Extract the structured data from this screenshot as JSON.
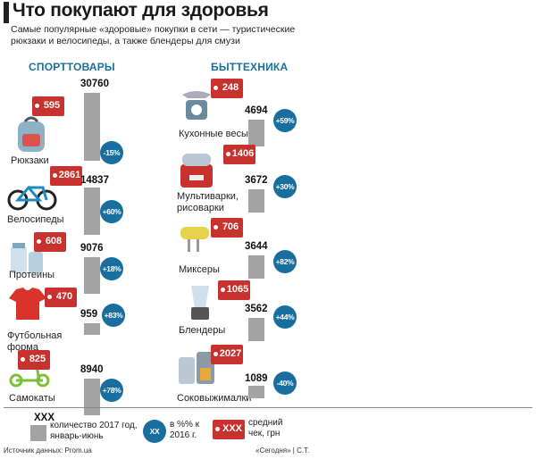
{
  "title": "Что покупают для здоровья",
  "subtitle": "Самые популярные «здоровые» покупки в сети — туристические рюкзаки и велосипеды, а также блендеры для смузи",
  "chart_data": {
    "type": "bar",
    "groups": [
      {
        "name": "СПОРТТОВАРЫ",
        "items": [
          {
            "label": "Рюкзаки",
            "quantity": 30760,
            "change": "-15%",
            "avg_check": 595,
            "icon": "backpack-icon"
          },
          {
            "label": "Велосипеды",
            "quantity": 14837,
            "change": "+60%",
            "avg_check": 2861,
            "icon": "bicycle-icon"
          },
          {
            "label": "Протеины",
            "quantity": 9076,
            "change": "+18%",
            "avg_check": 608,
            "icon": "protein-jar-icon"
          },
          {
            "label": "Футбольная форма",
            "quantity": 959,
            "change": "+83%",
            "avg_check": 470,
            "icon": "football-shirt-icon"
          },
          {
            "label": "Самокаты",
            "quantity": 8940,
            "change": "+78%",
            "avg_check": 825,
            "icon": "scooter-icon"
          }
        ]
      },
      {
        "name": "БЫТТЕХНИКА",
        "items": [
          {
            "label": "Кухонные весы",
            "quantity": 4694,
            "change": "+59%",
            "avg_check": 248,
            "icon": "kitchen-scale-icon"
          },
          {
            "label": "Мультиварки, рисоварки",
            "quantity": 3672,
            "change": "+30%",
            "avg_check": 1406,
            "icon": "multicooker-icon"
          },
          {
            "label": "Миксеры",
            "quantity": 3644,
            "change": "+82%",
            "avg_check": 706,
            "icon": "mixer-icon"
          },
          {
            "label": "Блендеры",
            "quantity": 3562,
            "change": "+44%",
            "avg_check": 1065,
            "icon": "blender-icon"
          },
          {
            "label": "Соковыжималки",
            "quantity": 1089,
            "change": "-40%",
            "avg_check": 2027,
            "icon": "juicer-icon"
          }
        ]
      }
    ]
  },
  "legend": {
    "qty_symbol": "XXX",
    "qty_text": "количество 2017 год, январь-июнь",
    "pct_symbol": "XX",
    "pct_text": "в %% к 2016 г.",
    "check_symbol": "XXX",
    "check_text": "средний чек, грн"
  },
  "footer": {
    "source": "Источник данных: Prom.ua",
    "credit": "«Сегодня» | С.Т."
  },
  "colors": {
    "accent_blue": "#186e9e",
    "tag_red": "#c8322e",
    "bar_gray": "#a3a3a3"
  }
}
